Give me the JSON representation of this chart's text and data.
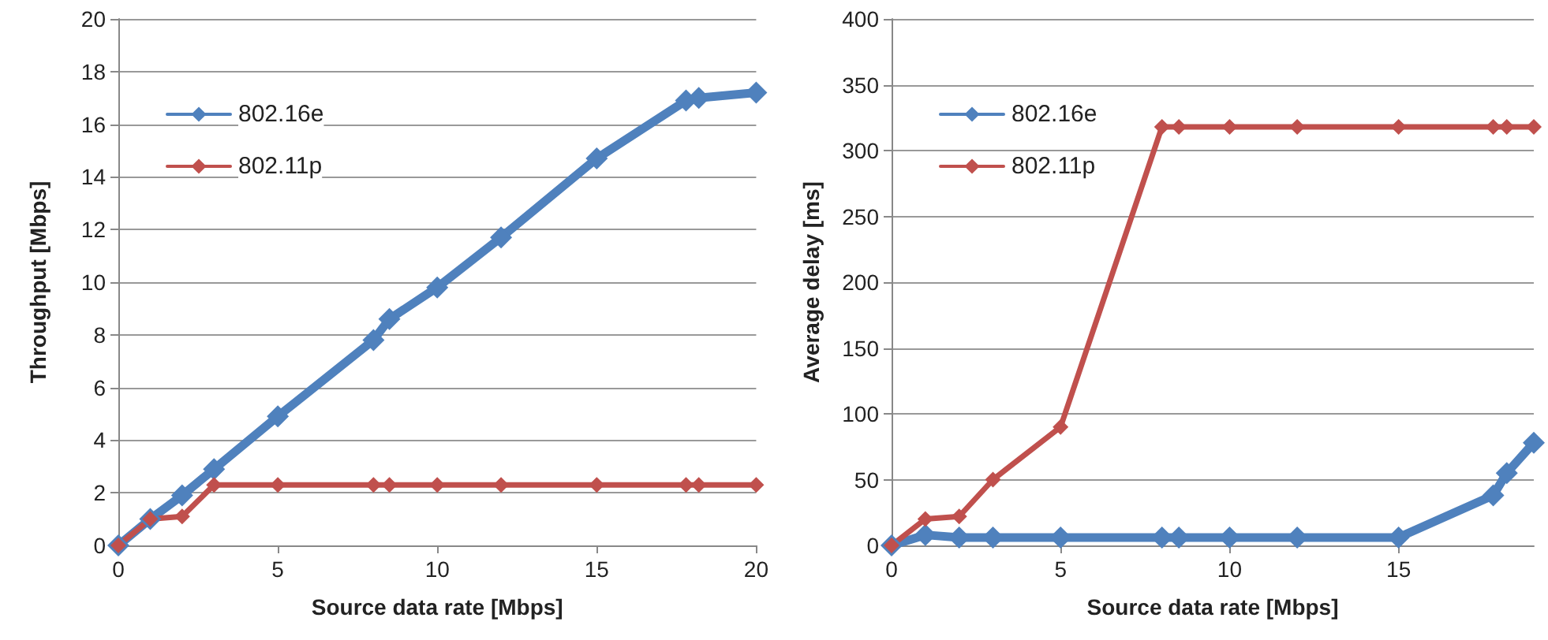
{
  "chart_data": [
    {
      "type": "line",
      "xlabel": "Source data rate [Mbps]",
      "ylabel": "Throughput [Mbps]",
      "x": [
        0,
        1,
        2,
        3,
        5,
        8,
        8.5,
        10,
        12,
        15,
        17.8,
        18.2,
        20
      ],
      "series": [
        {
          "name": "802.16e",
          "color": "#4f81bd",
          "values": [
            0,
            1,
            1.9,
            2.9,
            4.9,
            7.8,
            8.6,
            9.8,
            11.7,
            14.7,
            16.9,
            17,
            17.2
          ]
        },
        {
          "name": "802.11p",
          "color": "#c0504d",
          "values": [
            0,
            1,
            1.1,
            2.3,
            2.3,
            2.3,
            2.3,
            2.3,
            2.3,
            2.3,
            2.3,
            2.3,
            2.3
          ]
        }
      ],
      "xlim": [
        0,
        20
      ],
      "xticks": [
        0,
        5,
        10,
        15,
        20
      ],
      "ylim": [
        0,
        20
      ],
      "yticks": [
        0,
        2,
        4,
        6,
        8,
        10,
        12,
        14,
        16,
        18,
        20
      ],
      "grid": "y",
      "legend": "top left",
      "marker": "diamond",
      "line_style": "solid"
    },
    {
      "type": "line",
      "xlabel": "Source data rate [Mbps]",
      "ylabel": "Average delay [ms]",
      "x": [
        0,
        1,
        2,
        3,
        5,
        8,
        8.5,
        10,
        12,
        15,
        17.8,
        18.2,
        19
      ],
      "series": [
        {
          "name": "802.16e",
          "color": "#4f81bd",
          "values": [
            0,
            8,
            6,
            6,
            6,
            6,
            6,
            6,
            6,
            6,
            38,
            55,
            78
          ]
        },
        {
          "name": "802.11p",
          "color": "#c0504d",
          "values": [
            0,
            20,
            22,
            50,
            90,
            318,
            318,
            318,
            318,
            318,
            318,
            318,
            318
          ]
        }
      ],
      "xlim": [
        0,
        19
      ],
      "xticks": [
        0,
        5,
        10,
        15
      ],
      "ylim": [
        0,
        400
      ],
      "yticks": [
        0,
        50,
        100,
        150,
        200,
        250,
        300,
        350,
        400
      ],
      "grid": "y",
      "legend": "top left",
      "marker": "diamond",
      "line_style": "solid"
    }
  ]
}
